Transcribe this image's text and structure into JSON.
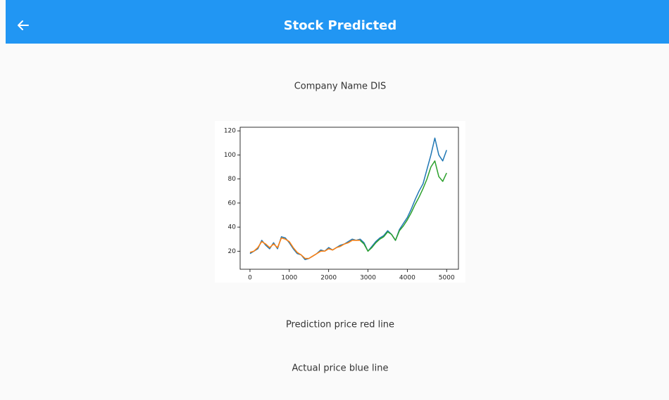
{
  "app_bar": {
    "title": "Stock Predicted"
  },
  "company_label": "Company Name DIS",
  "chart_data": {
    "type": "line",
    "x": [
      0,
      100,
      200,
      300,
      400,
      500,
      600,
      700,
      800,
      900,
      1000,
      1100,
      1200,
      1300,
      1400,
      1500,
      1600,
      1700,
      1800,
      1900,
      2000,
      2100,
      2200,
      2300,
      2400,
      2500,
      2600,
      2700,
      2800,
      2900,
      3000,
      3100,
      3200,
      3300,
      3400,
      3500,
      3600,
      3700,
      3800,
      3900,
      4000,
      4100,
      4200,
      4300,
      4400,
      4500,
      4600,
      4700,
      4800,
      4900,
      5000
    ],
    "series": [
      {
        "color": "#1f77b4",
        "values": [
          18,
          20,
          22,
          29,
          25,
          22,
          27,
          22,
          32,
          31,
          27,
          22,
          18,
          17,
          13,
          14,
          16,
          18,
          21,
          20,
          23,
          21,
          23,
          25,
          26,
          28,
          30,
          29,
          30,
          27,
          20,
          24,
          28,
          31,
          33,
          37,
          34,
          29,
          38,
          43,
          48,
          55,
          63,
          70,
          76,
          88,
          100,
          114,
          100,
          95,
          104
        ]
      },
      {
        "color": "#ff7f0e",
        "values": [
          19,
          20,
          23,
          28,
          26,
          23,
          26,
          23,
          31,
          30,
          28,
          23,
          19,
          17,
          14,
          14,
          16,
          18,
          20,
          20,
          22,
          21,
          23,
          24,
          26,
          27,
          29,
          29,
          29,
          null,
          null,
          null,
          null,
          null,
          null,
          null,
          null,
          null,
          null,
          null,
          null,
          null,
          null,
          null,
          null,
          null,
          null,
          null,
          null,
          null,
          null
        ]
      },
      {
        "color": "#2ca02c",
        "values": [
          null,
          null,
          null,
          null,
          null,
          null,
          null,
          null,
          null,
          null,
          null,
          null,
          null,
          null,
          null,
          null,
          null,
          null,
          null,
          null,
          null,
          null,
          null,
          null,
          null,
          null,
          null,
          null,
          29,
          26,
          20,
          23,
          27,
          30,
          32,
          36,
          34,
          29,
          37,
          41,
          46,
          52,
          59,
          65,
          72,
          80,
          90,
          95,
          82,
          78,
          85
        ]
      }
    ],
    "xlim": [
      -250,
      5300
    ],
    "ylim": [
      5,
      123
    ],
    "xticks": [
      0,
      1000,
      2000,
      3000,
      4000,
      5000
    ],
    "yticks": [
      20,
      40,
      60,
      80,
      100,
      120
    ]
  },
  "captions": [
    "Prediction price red line",
    "Actual price blue line"
  ]
}
